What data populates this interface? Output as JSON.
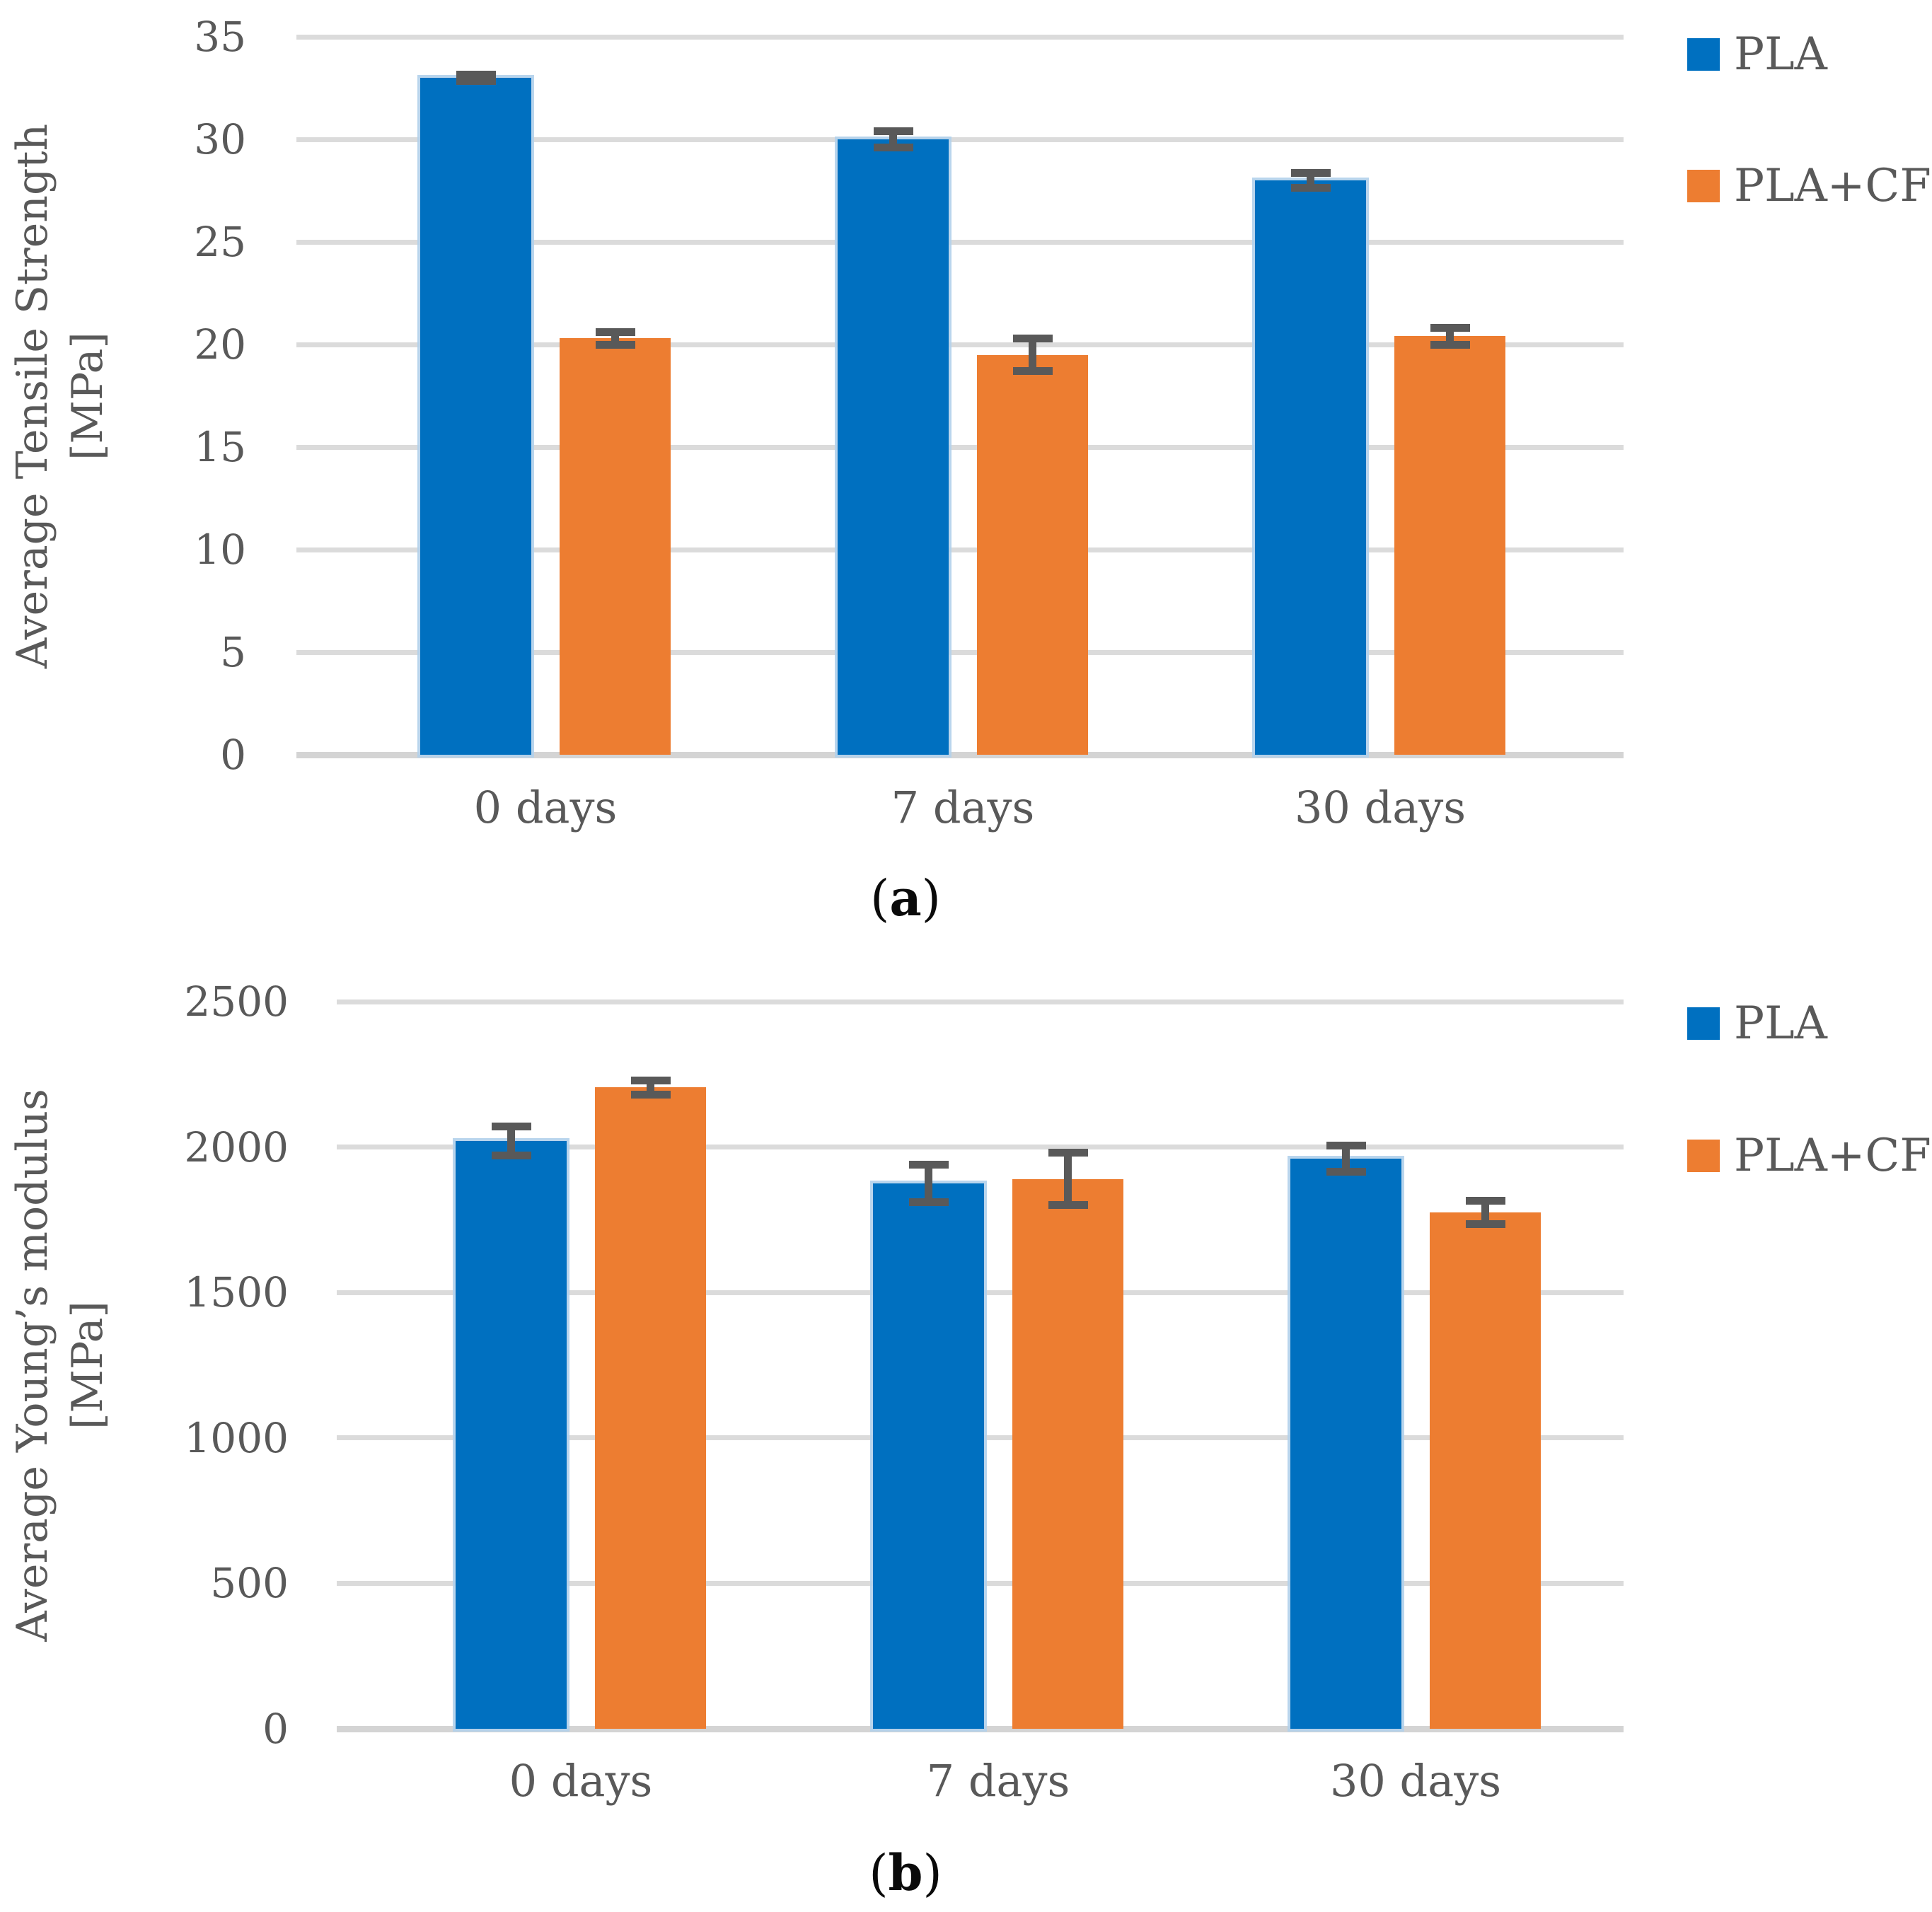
{
  "figure": {
    "background": "#FFFFFF",
    "text_color": "#595959",
    "grid_color": "#DBDBDB",
    "error_bar_color": "#595959",
    "paren_open": "(",
    "paren_close": ")"
  },
  "chart_data": [
    {
      "type": "bar",
      "panel_letter": "a",
      "ylabel_line1": "Average Tensile Strength",
      "ylabel_line2": "[MPa]",
      "ylim": [
        0,
        35
      ],
      "yticks": [
        0,
        5,
        10,
        15,
        20,
        25,
        30,
        35
      ],
      "grid": "horizontal",
      "legend_position": "right-top",
      "categories": [
        "0 days",
        "7 days",
        "30 days"
      ],
      "series": [
        {
          "name": "PLA",
          "color": "#0070C0",
          "values": [
            33.0,
            30.0,
            28.0
          ],
          "errors": [
            0.15,
            0.4,
            0.35
          ]
        },
        {
          "name": "PLA+CF",
          "color": "#ED7D31",
          "values": [
            20.3,
            19.5,
            20.4
          ],
          "errors": [
            0.3,
            0.8,
            0.4
          ]
        }
      ]
    },
    {
      "type": "bar",
      "panel_letter": "b",
      "ylabel_line1": "Average Young’s modulus",
      "ylabel_line2": "[MPa]",
      "ylim": [
        0,
        2500
      ],
      "yticks": [
        0,
        500,
        1000,
        1500,
        2000,
        2500
      ],
      "grid": "horizontal",
      "legend_position": "right-top",
      "categories": [
        "0 days",
        "7 days",
        "30 days"
      ],
      "series": [
        {
          "name": "PLA",
          "color": "#0070C0",
          "values": [
            2020,
            1875,
            1960
          ],
          "errors": [
            50,
            65,
            45
          ]
        },
        {
          "name": "PLA+CF",
          "color": "#ED7D31",
          "values": [
            2205,
            1890,
            1775
          ],
          "errors": [
            25,
            90,
            40
          ]
        }
      ]
    }
  ]
}
